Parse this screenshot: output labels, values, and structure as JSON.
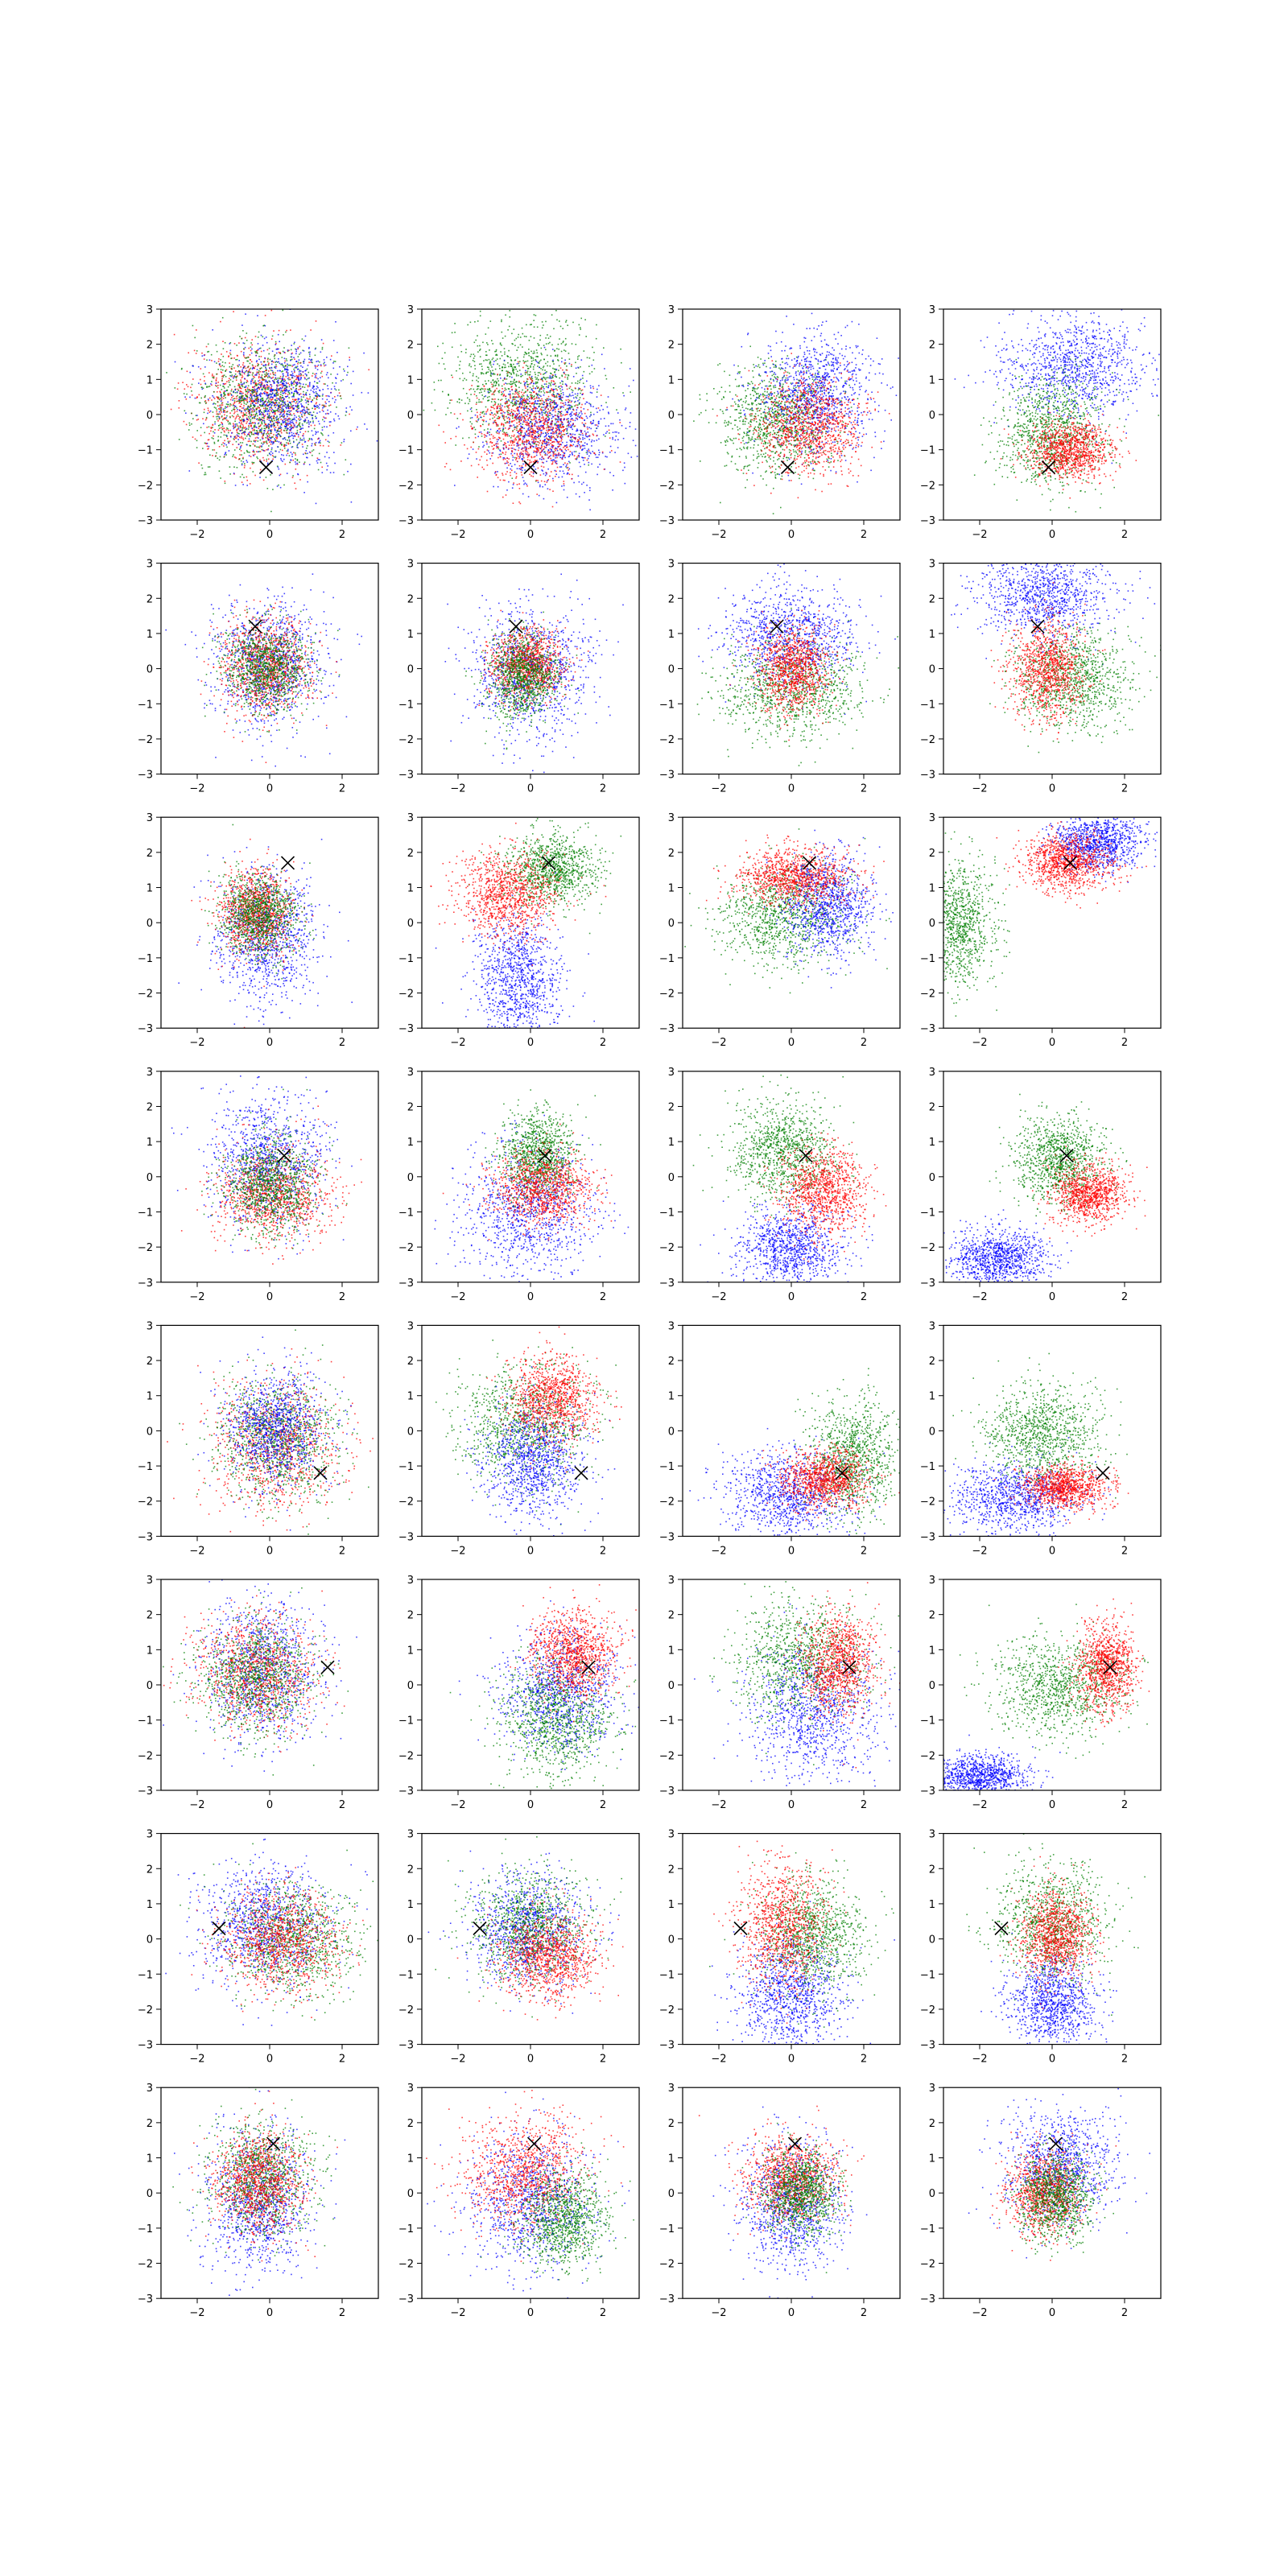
{
  "figure": {
    "rows": 8,
    "cols": 4
  },
  "chart_data": {
    "type": "scatter",
    "title": "",
    "xlabel": "",
    "ylabel": "",
    "grid": false,
    "legend": "none",
    "xlim": [
      -3,
      3
    ],
    "ylim": [
      -3,
      3
    ],
    "xticks": [
      -2,
      0,
      2
    ],
    "yticks": [
      -3,
      -2,
      -1,
      0,
      1,
      2,
      3
    ],
    "tick_labels_x": [
      "−2",
      "0",
      "2"
    ],
    "tick_labels_y": [
      "−3",
      "−2",
      "−1",
      "0",
      "1",
      "2",
      "3"
    ],
    "colors": {
      "series_a": "#ff0000",
      "series_b": "#007f00",
      "series_c": "#0000ff",
      "marker": "#000000"
    },
    "points_per_cluster": 1000,
    "marker_symbol": "x",
    "panels": [
      {
        "row": 0,
        "col": 0,
        "marker": [
          -0.1,
          -1.5
        ],
        "clusters": [
          {
            "color": "series_a",
            "cx": -0.3,
            "cy": 0.3,
            "sx": 0.9,
            "sy": 0.9
          },
          {
            "color": "series_b",
            "cx": -0.2,
            "cy": 0.3,
            "sx": 0.9,
            "sy": 0.9
          },
          {
            "color": "series_c",
            "cx": 0.3,
            "cy": 0.3,
            "sx": 0.9,
            "sy": 0.9
          }
        ]
      },
      {
        "row": 0,
        "col": 1,
        "marker": [
          0.0,
          -1.5
        ],
        "clusters": [
          {
            "color": "series_b",
            "cx": -0.2,
            "cy": 0.9,
            "sx": 1.0,
            "sy": 0.9
          },
          {
            "color": "series_c",
            "cx": 0.6,
            "cy": -0.4,
            "sx": 0.9,
            "sy": 0.8
          },
          {
            "color": "series_a",
            "cx": 0.0,
            "cy": -0.4,
            "sx": 0.8,
            "sy": 0.7
          }
        ]
      },
      {
        "row": 0,
        "col": 2,
        "marker": [
          -0.1,
          -1.5
        ],
        "clusters": [
          {
            "color": "series_b",
            "cx": -0.4,
            "cy": -0.2,
            "sx": 0.8,
            "sy": 0.8
          },
          {
            "color": "series_c",
            "cx": 0.7,
            "cy": 0.6,
            "sx": 0.8,
            "sy": 0.8
          },
          {
            "color": "series_a",
            "cx": 0.5,
            "cy": -0.3,
            "sx": 0.7,
            "sy": 0.7
          }
        ]
      },
      {
        "row": 0,
        "col": 3,
        "marker": [
          -0.1,
          -1.5
        ],
        "clusters": [
          {
            "color": "series_c",
            "cx": 0.6,
            "cy": 1.4,
            "sx": 1.0,
            "sy": 0.7
          },
          {
            "color": "series_b",
            "cx": 0.0,
            "cy": -0.5,
            "sx": 0.7,
            "sy": 0.8
          },
          {
            "color": "series_a",
            "cx": 0.5,
            "cy": -1.0,
            "sx": 0.6,
            "sy": 0.4
          }
        ]
      },
      {
        "row": 1,
        "col": 0,
        "marker": [
          -0.4,
          1.2
        ],
        "clusters": [
          {
            "color": "series_c",
            "cx": 0.0,
            "cy": 0.1,
            "sx": 0.8,
            "sy": 0.9
          },
          {
            "color": "series_a",
            "cx": -0.1,
            "cy": 0.1,
            "sx": 0.6,
            "sy": 0.7
          },
          {
            "color": "series_b",
            "cx": -0.1,
            "cy": 0.0,
            "sx": 0.6,
            "sy": 0.6
          }
        ]
      },
      {
        "row": 1,
        "col": 1,
        "marker": [
          -0.4,
          1.2
        ],
        "clusters": [
          {
            "color": "series_c",
            "cx": 0.0,
            "cy": -0.1,
            "sx": 0.8,
            "sy": 0.9
          },
          {
            "color": "series_a",
            "cx": -0.1,
            "cy": 0.1,
            "sx": 0.5,
            "sy": 0.5
          },
          {
            "color": "series_b",
            "cx": -0.2,
            "cy": -0.2,
            "sx": 0.5,
            "sy": 0.6
          }
        ]
      },
      {
        "row": 1,
        "col": 2,
        "marker": [
          -0.4,
          1.2
        ],
        "clusters": [
          {
            "color": "series_c",
            "cx": 0.0,
            "cy": 0.9,
            "sx": 0.9,
            "sy": 0.7
          },
          {
            "color": "series_b",
            "cx": 0.0,
            "cy": -0.6,
            "sx": 1.0,
            "sy": 0.7
          },
          {
            "color": "series_a",
            "cx": 0.1,
            "cy": 0.0,
            "sx": 0.5,
            "sy": 0.6
          }
        ]
      },
      {
        "row": 1,
        "col": 3,
        "marker": [
          -0.4,
          1.2
        ],
        "clusters": [
          {
            "color": "series_c",
            "cx": -0.2,
            "cy": 2.1,
            "sx": 0.9,
            "sy": 0.6
          },
          {
            "color": "series_b",
            "cx": 0.6,
            "cy": -0.3,
            "sx": 0.8,
            "sy": 0.7
          },
          {
            "color": "series_a",
            "cx": -0.1,
            "cy": 0.0,
            "sx": 0.5,
            "sy": 0.7
          }
        ]
      },
      {
        "row": 2,
        "col": 0,
        "marker": [
          0.5,
          1.7
        ],
        "clusters": [
          {
            "color": "series_c",
            "cx": -0.1,
            "cy": -0.4,
            "sx": 0.7,
            "sy": 0.9
          },
          {
            "color": "series_a",
            "cx": -0.4,
            "cy": 0.3,
            "sx": 0.5,
            "sy": 0.6
          },
          {
            "color": "series_b",
            "cx": -0.3,
            "cy": 0.2,
            "sx": 0.5,
            "sy": 0.6
          }
        ]
      },
      {
        "row": 2,
        "col": 1,
        "marker": [
          0.5,
          1.7
        ],
        "clusters": [
          {
            "color": "series_c",
            "cx": -0.3,
            "cy": -1.6,
            "sx": 0.6,
            "sy": 0.9
          },
          {
            "color": "series_b",
            "cx": 0.6,
            "cy": 1.5,
            "sx": 0.6,
            "sy": 0.5
          },
          {
            "color": "series_a",
            "cx": -0.6,
            "cy": 0.8,
            "sx": 0.7,
            "sy": 0.6
          }
        ]
      },
      {
        "row": 2,
        "col": 2,
        "marker": [
          0.5,
          1.7
        ],
        "clusters": [
          {
            "color": "series_b",
            "cx": -0.2,
            "cy": 0.2,
            "sx": 0.9,
            "sy": 0.7
          },
          {
            "color": "series_c",
            "cx": 1.0,
            "cy": 0.5,
            "sx": 0.6,
            "sy": 0.7
          },
          {
            "color": "series_a",
            "cx": 0.1,
            "cy": 1.3,
            "sx": 0.8,
            "sy": 0.4
          }
        ]
      },
      {
        "row": 2,
        "col": 3,
        "marker": [
          0.5,
          1.7
        ],
        "clusters": [
          {
            "color": "series_b",
            "cx": -2.6,
            "cy": 0.0,
            "sx": 0.5,
            "sy": 0.9
          },
          {
            "color": "series_c",
            "cx": 1.3,
            "cy": 2.3,
            "sx": 0.6,
            "sy": 0.4
          },
          {
            "color": "series_a",
            "cx": 0.4,
            "cy": 1.7,
            "sx": 0.6,
            "sy": 0.4
          }
        ]
      },
      {
        "row": 3,
        "col": 0,
        "marker": [
          0.4,
          0.6
        ],
        "clusters": [
          {
            "color": "series_c",
            "cx": 0.0,
            "cy": 0.5,
            "sx": 0.8,
            "sy": 0.9
          },
          {
            "color": "series_a",
            "cx": 0.1,
            "cy": -0.5,
            "sx": 0.8,
            "sy": 0.7
          },
          {
            "color": "series_b",
            "cx": 0.0,
            "cy": -0.2,
            "sx": 0.6,
            "sy": 0.7
          }
        ]
      },
      {
        "row": 3,
        "col": 1,
        "marker": [
          0.4,
          0.6
        ],
        "clusters": [
          {
            "color": "series_c",
            "cx": 0.0,
            "cy": -1.0,
            "sx": 0.9,
            "sy": 0.9
          },
          {
            "color": "series_b",
            "cx": 0.2,
            "cy": 0.6,
            "sx": 0.5,
            "sy": 0.6
          },
          {
            "color": "series_a",
            "cx": 0.4,
            "cy": -0.3,
            "sx": 0.7,
            "sy": 0.5
          }
        ]
      },
      {
        "row": 3,
        "col": 2,
        "marker": [
          0.4,
          0.6
        ],
        "clusters": [
          {
            "color": "series_c",
            "cx": 0.0,
            "cy": -2.0,
            "sx": 0.7,
            "sy": 0.6
          },
          {
            "color": "series_b",
            "cx": -0.2,
            "cy": 0.7,
            "sx": 0.7,
            "sy": 0.7
          },
          {
            "color": "series_a",
            "cx": 0.9,
            "cy": -0.4,
            "sx": 0.6,
            "sy": 0.6
          }
        ]
      },
      {
        "row": 3,
        "col": 3,
        "marker": [
          0.4,
          0.6
        ],
        "clusters": [
          {
            "color": "series_c",
            "cx": -1.5,
            "cy": -2.3,
            "sx": 0.7,
            "sy": 0.4
          },
          {
            "color": "series_b",
            "cx": 0.2,
            "cy": 0.5,
            "sx": 0.6,
            "sy": 0.6
          },
          {
            "color": "series_a",
            "cx": 1.0,
            "cy": -0.5,
            "sx": 0.5,
            "sy": 0.4
          }
        ]
      },
      {
        "row": 4,
        "col": 0,
        "marker": [
          1.4,
          -1.2
        ],
        "clusters": [
          {
            "color": "series_a",
            "cx": 0.2,
            "cy": -0.4,
            "sx": 0.9,
            "sy": 0.9
          },
          {
            "color": "series_b",
            "cx": 0.2,
            "cy": -0.2,
            "sx": 0.8,
            "sy": 0.9
          },
          {
            "color": "series_c",
            "cx": 0.1,
            "cy": 0.1,
            "sx": 0.7,
            "sy": 0.8
          }
        ]
      },
      {
        "row": 4,
        "col": 1,
        "marker": [
          1.4,
          -1.2
        ],
        "clusters": [
          {
            "color": "series_b",
            "cx": -0.2,
            "cy": 0.2,
            "sx": 0.9,
            "sy": 0.8
          },
          {
            "color": "series_c",
            "cx": 0.1,
            "cy": -0.9,
            "sx": 0.7,
            "sy": 0.8
          },
          {
            "color": "series_a",
            "cx": 0.6,
            "cy": 0.9,
            "sx": 0.6,
            "sy": 0.6
          }
        ]
      },
      {
        "row": 4,
        "col": 2,
        "marker": [
          1.4,
          -1.2
        ],
        "clusters": [
          {
            "color": "series_c",
            "cx": -0.1,
            "cy": -1.8,
            "sx": 0.9,
            "sy": 0.6
          },
          {
            "color": "series_b",
            "cx": 1.7,
            "cy": -0.8,
            "sx": 0.6,
            "sy": 0.8
          },
          {
            "color": "series_a",
            "cx": 0.9,
            "cy": -1.4,
            "sx": 0.6,
            "sy": 0.4
          }
        ]
      },
      {
        "row": 4,
        "col": 3,
        "marker": [
          1.4,
          -1.2
        ],
        "clusters": [
          {
            "color": "series_c",
            "cx": -1.0,
            "cy": -1.9,
            "sx": 0.9,
            "sy": 0.5
          },
          {
            "color": "series_b",
            "cx": -0.3,
            "cy": -0.1,
            "sx": 0.8,
            "sy": 0.7
          },
          {
            "color": "series_a",
            "cx": 0.4,
            "cy": -1.6,
            "sx": 0.6,
            "sy": 0.3
          }
        ]
      },
      {
        "row": 5,
        "col": 0,
        "marker": [
          1.6,
          0.5
        ],
        "clusters": [
          {
            "color": "series_c",
            "cx": -0.2,
            "cy": 0.5,
            "sx": 0.8,
            "sy": 1.0
          },
          {
            "color": "series_a",
            "cx": -0.4,
            "cy": 0.4,
            "sx": 0.8,
            "sy": 0.8
          },
          {
            "color": "series_b",
            "cx": -0.4,
            "cy": 0.2,
            "sx": 0.8,
            "sy": 0.8
          }
        ]
      },
      {
        "row": 5,
        "col": 1,
        "marker": [
          1.6,
          0.5
        ],
        "clusters": [
          {
            "color": "series_c",
            "cx": 0.8,
            "cy": -0.2,
            "sx": 0.8,
            "sy": 0.9
          },
          {
            "color": "series_b",
            "cx": 0.7,
            "cy": -1.0,
            "sx": 0.8,
            "sy": 0.8
          },
          {
            "color": "series_a",
            "cx": 1.2,
            "cy": 0.9,
            "sx": 0.6,
            "sy": 0.6
          }
        ]
      },
      {
        "row": 5,
        "col": 2,
        "marker": [
          1.6,
          0.5
        ],
        "clusters": [
          {
            "color": "series_c",
            "cx": 0.6,
            "cy": -0.8,
            "sx": 0.9,
            "sy": 1.0
          },
          {
            "color": "series_b",
            "cx": 0.2,
            "cy": 0.7,
            "sx": 0.9,
            "sy": 0.8
          },
          {
            "color": "series_a",
            "cx": 1.3,
            "cy": 0.6,
            "sx": 0.5,
            "sy": 0.7
          }
        ]
      },
      {
        "row": 5,
        "col": 3,
        "marker": [
          1.6,
          0.5
        ],
        "clusters": [
          {
            "color": "series_c",
            "cx": -2.0,
            "cy": -2.6,
            "sx": 0.7,
            "sy": 0.3
          },
          {
            "color": "series_b",
            "cx": 0.2,
            "cy": 0.0,
            "sx": 0.9,
            "sy": 0.7
          },
          {
            "color": "series_a",
            "cx": 1.5,
            "cy": 0.5,
            "sx": 0.4,
            "sy": 0.6
          }
        ]
      },
      {
        "row": 6,
        "col": 0,
        "marker": [
          -1.4,
          0.3
        ],
        "clusters": [
          {
            "color": "series_c",
            "cx": -0.2,
            "cy": 0.4,
            "sx": 0.9,
            "sy": 0.9
          },
          {
            "color": "series_b",
            "cx": 0.6,
            "cy": 0.0,
            "sx": 0.9,
            "sy": 0.8
          },
          {
            "color": "series_a",
            "cx": 0.3,
            "cy": -0.1,
            "sx": 0.8,
            "sy": 0.7
          }
        ]
      },
      {
        "row": 6,
        "col": 1,
        "marker": [
          -1.4,
          0.3
        ],
        "clusters": [
          {
            "color": "series_c",
            "cx": -0.1,
            "cy": 0.3,
            "sx": 0.8,
            "sy": 0.8
          },
          {
            "color": "series_b",
            "cx": 0.0,
            "cy": 0.4,
            "sx": 0.8,
            "sy": 0.8
          },
          {
            "color": "series_a",
            "cx": 0.5,
            "cy": -0.5,
            "sx": 0.7,
            "sy": 0.6
          }
        ]
      },
      {
        "row": 6,
        "col": 2,
        "marker": [
          -1.4,
          0.3
        ],
        "clusters": [
          {
            "color": "series_c",
            "cx": 0.0,
            "cy": -1.6,
            "sx": 0.7,
            "sy": 0.8
          },
          {
            "color": "series_b",
            "cx": 0.6,
            "cy": 0.1,
            "sx": 0.7,
            "sy": 0.8
          },
          {
            "color": "series_a",
            "cx": -0.2,
            "cy": 0.4,
            "sx": 0.6,
            "sy": 0.9
          }
        ]
      },
      {
        "row": 6,
        "col": 3,
        "marker": [
          -1.4,
          0.3
        ],
        "clusters": [
          {
            "color": "series_c",
            "cx": 0.0,
            "cy": -1.8,
            "sx": 0.6,
            "sy": 0.6
          },
          {
            "color": "series_b",
            "cx": 0.0,
            "cy": 0.5,
            "sx": 0.8,
            "sy": 0.8
          },
          {
            "color": "series_a",
            "cx": 0.1,
            "cy": 0.1,
            "sx": 0.5,
            "sy": 0.6
          }
        ]
      },
      {
        "row": 7,
        "col": 0,
        "marker": [
          0.1,
          1.4
        ],
        "clusters": [
          {
            "color": "series_c",
            "cx": -0.3,
            "cy": -0.3,
            "sx": 0.7,
            "sy": 1.0
          },
          {
            "color": "series_b",
            "cx": -0.2,
            "cy": 0.4,
            "sx": 0.7,
            "sy": 0.8
          },
          {
            "color": "series_a",
            "cx": -0.3,
            "cy": 0.3,
            "sx": 0.6,
            "sy": 0.7
          }
        ]
      },
      {
        "row": 7,
        "col": 1,
        "marker": [
          0.1,
          1.4
        ],
        "clusters": [
          {
            "color": "series_c",
            "cx": 0.0,
            "cy": -0.2,
            "sx": 0.9,
            "sy": 0.9
          },
          {
            "color": "series_a",
            "cx": -0.2,
            "cy": 0.6,
            "sx": 0.8,
            "sy": 0.8
          },
          {
            "color": "series_b",
            "cx": 0.9,
            "cy": -0.7,
            "sx": 0.6,
            "sy": 0.7
          }
        ]
      },
      {
        "row": 7,
        "col": 2,
        "marker": [
          0.1,
          1.4
        ],
        "clusters": [
          {
            "color": "series_c",
            "cx": 0.0,
            "cy": -0.4,
            "sx": 0.7,
            "sy": 0.9
          },
          {
            "color": "series_a",
            "cx": 0.0,
            "cy": 0.4,
            "sx": 0.6,
            "sy": 0.6
          },
          {
            "color": "series_b",
            "cx": 0.3,
            "cy": 0.0,
            "sx": 0.5,
            "sy": 0.6
          }
        ]
      },
      {
        "row": 7,
        "col": 3,
        "marker": [
          0.1,
          1.4
        ],
        "clusters": [
          {
            "color": "series_c",
            "cx": 0.2,
            "cy": 0.7,
            "sx": 0.8,
            "sy": 0.8
          },
          {
            "color": "series_a",
            "cx": -0.2,
            "cy": 0.0,
            "sx": 0.5,
            "sy": 0.6
          },
          {
            "color": "series_b",
            "cx": 0.1,
            "cy": -0.1,
            "sx": 0.5,
            "sy": 0.6
          }
        ]
      }
    ]
  }
}
